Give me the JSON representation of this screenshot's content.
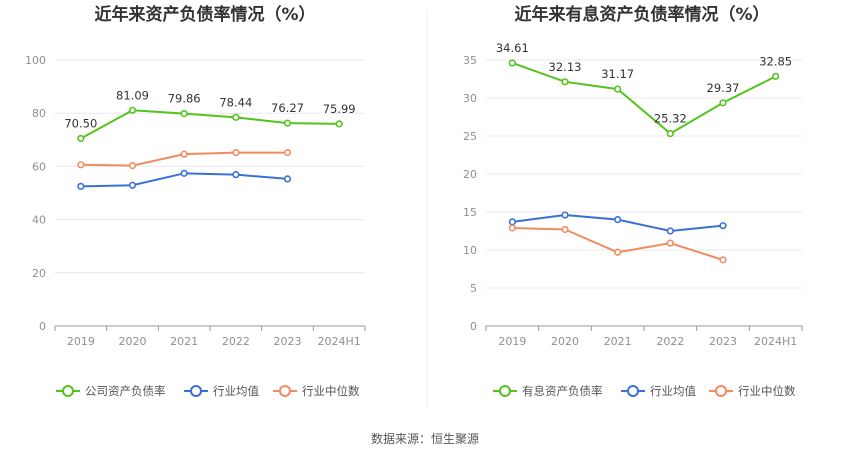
{
  "source": "数据来源：恒生聚源",
  "colors": {
    "company": "#52c41a",
    "avg": "#3a6fd8",
    "median": "#f08c5f",
    "grid": "#e8e8f0",
    "axis": "#999999"
  },
  "chart_data": [
    {
      "type": "line",
      "title": "近年来资产负债率情况（%）",
      "categories": [
        "2019",
        "2020",
        "2021",
        "2022",
        "2023",
        "2024H1"
      ],
      "ylim": [
        0,
        100
      ],
      "yticks": [
        0,
        20,
        40,
        60,
        80,
        100
      ],
      "ytick_labels": [
        "0",
        "20",
        "40",
        "60",
        "80",
        "100"
      ],
      "series": [
        {
          "key": "company",
          "name": "公司资产负债率",
          "values": [
            70.5,
            81.09,
            79.86,
            78.44,
            76.27,
            75.99
          ],
          "labels": [
            "70.50",
            "81.09",
            "79.86",
            "78.44",
            "76.27",
            "75.99"
          ]
        },
        {
          "key": "avg",
          "name": "行业均值",
          "values": [
            52.5,
            52.9,
            57.4,
            56.9,
            55.3,
            null
          ]
        },
        {
          "key": "median",
          "name": "行业中位数",
          "values": [
            60.6,
            60.3,
            64.6,
            65.2,
            65.2,
            null
          ]
        }
      ]
    },
    {
      "type": "line",
      "title": "近年来有息资产负债率情况（%）",
      "categories": [
        "2019",
        "2020",
        "2021",
        "2022",
        "2023",
        "2024H1"
      ],
      "ylim": [
        0,
        35
      ],
      "yticks": [
        0,
        5,
        10,
        15,
        20,
        25,
        30,
        35
      ],
      "ytick_labels": [
        "0",
        "5",
        "10",
        "15",
        "20",
        "25",
        "30",
        "35"
      ],
      "series": [
        {
          "key": "company",
          "name": "有息资产负债率",
          "values": [
            34.61,
            32.13,
            31.17,
            25.32,
            29.37,
            32.85
          ],
          "labels": [
            "34.61",
            "32.13",
            "31.17",
            "25.32",
            "29.37",
            "32.85"
          ]
        },
        {
          "key": "avg",
          "name": "行业均值",
          "values": [
            13.7,
            14.6,
            14.0,
            12.5,
            13.2,
            null
          ]
        },
        {
          "key": "median",
          "name": "行业中位数",
          "values": [
            12.9,
            12.7,
            9.7,
            10.9,
            8.7,
            null
          ]
        }
      ]
    }
  ]
}
